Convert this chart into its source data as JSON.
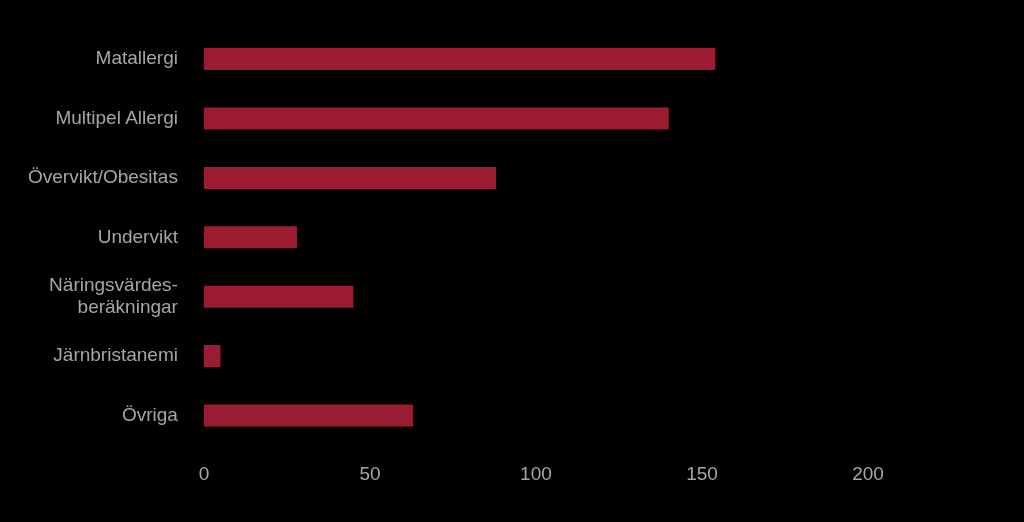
{
  "chart_data": {
    "type": "bar",
    "orientation": "horizontal",
    "categories": [
      "Matallergi",
      "Multipel Allergi",
      "Övervikt/Obesitas",
      "Undervikt",
      "Näringsvärdes-\nberäkningar",
      "Järnbristanemi",
      "Övriga"
    ],
    "values": [
      154,
      140,
      88,
      28,
      45,
      5,
      63
    ],
    "color": "#9b1c31",
    "xlim": [
      0,
      200
    ],
    "xticks": [
      0,
      50,
      100,
      150,
      200
    ]
  }
}
